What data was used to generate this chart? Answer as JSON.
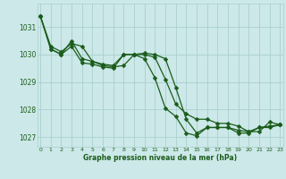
{
  "bg_color": "#cce8e8",
  "grid_color": "#aacfcf",
  "line_color": "#1a5c1a",
  "series": [
    {
      "x": [
        0,
        1,
        2,
        3,
        4,
        5,
        6,
        7,
        8,
        9,
        10,
        11,
        12,
        13,
        14,
        15,
        16,
        17,
        18,
        19,
        20,
        21,
        22,
        23
      ],
      "y": [
        1031.4,
        1030.2,
        1030.0,
        1030.3,
        1029.7,
        1029.65,
        1029.55,
        1029.5,
        1030.0,
        1030.0,
        1029.85,
        1029.15,
        1028.05,
        1027.75,
        1027.15,
        1027.05,
        1027.35,
        1027.35,
        1027.35,
        1027.15,
        1027.15,
        1027.35,
        1027.35,
        1027.45
      ]
    },
    {
      "x": [
        0,
        1,
        2,
        3,
        4,
        5,
        6,
        7,
        8,
        9,
        10,
        11,
        12,
        13,
        14,
        15,
        16,
        17,
        18,
        19,
        20,
        21,
        22,
        23
      ],
      "y": [
        1031.4,
        1030.2,
        1030.0,
        1030.5,
        1029.85,
        1029.75,
        1029.65,
        1029.6,
        1030.0,
        1030.0,
        1030.0,
        1029.9,
        1029.1,
        1028.2,
        1027.85,
        1027.65,
        1027.65,
        1027.5,
        1027.5,
        1027.4,
        1027.2,
        1027.2,
        1027.55,
        1027.45
      ]
    },
    {
      "x": [
        0,
        1,
        2,
        3,
        4,
        5,
        6,
        7,
        8,
        9,
        10,
        11,
        12,
        13,
        14,
        15,
        16,
        17,
        18,
        19,
        20,
        21,
        22,
        23
      ],
      "y": [
        1031.4,
        1030.3,
        1030.1,
        1030.4,
        1030.3,
        1029.75,
        1029.6,
        1029.55,
        1029.6,
        1030.0,
        1030.05,
        1030.0,
        1029.85,
        1028.8,
        1027.65,
        1027.15,
        1027.35,
        1027.35,
        1027.35,
        1027.25,
        1027.2,
        1027.35,
        1027.4,
        1027.45
      ]
    }
  ],
  "xlim": [
    -0.3,
    23.3
  ],
  "ylim": [
    1026.65,
    1031.85
  ],
  "yticks": [
    1027,
    1028,
    1029,
    1030,
    1031
  ],
  "xticks": [
    0,
    1,
    2,
    3,
    4,
    5,
    6,
    7,
    8,
    9,
    10,
    11,
    12,
    13,
    14,
    15,
    16,
    17,
    18,
    19,
    20,
    21,
    22,
    23
  ],
  "xlabel": "Graphe pression niveau de la mer (hPa)",
  "marker": "D",
  "markersize": 2.5,
  "linewidth": 0.9
}
